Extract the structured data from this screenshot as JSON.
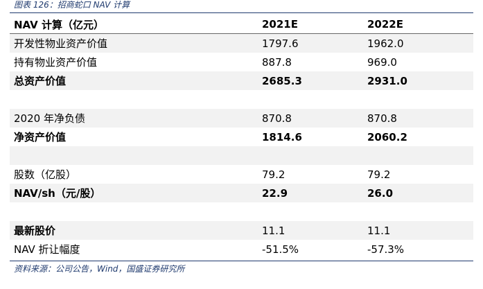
{
  "caption": "图表 126：招商蛇口 NAV 计算",
  "table": {
    "header": [
      "NAV 计算（亿元）",
      "2021E",
      "2022E"
    ],
    "rows": [
      [
        "开发性物业资产价值",
        "1797.6",
        "1962.0"
      ],
      [
        "持有物业资产价值",
        "887.8",
        "969.0"
      ],
      [
        "总资产价值",
        "2685.3",
        "2931.0"
      ],
      [
        "2020 年净负债",
        "870.8",
        "870.8"
      ],
      [
        "净资产价值",
        "1814.6",
        "2060.2"
      ],
      [
        "股数（亿股）",
        "79.2",
        "79.2"
      ],
      [
        "NAV/sh（元/股）",
        "22.9",
        "26.0"
      ],
      [
        "最新股价",
        "11.1",
        "11.1"
      ],
      [
        "NAV 折让幅度",
        "-51.5%",
        "-57.3%"
      ]
    ]
  },
  "source": "资料来源：公司公告，Wind，国盛证券研究所"
}
